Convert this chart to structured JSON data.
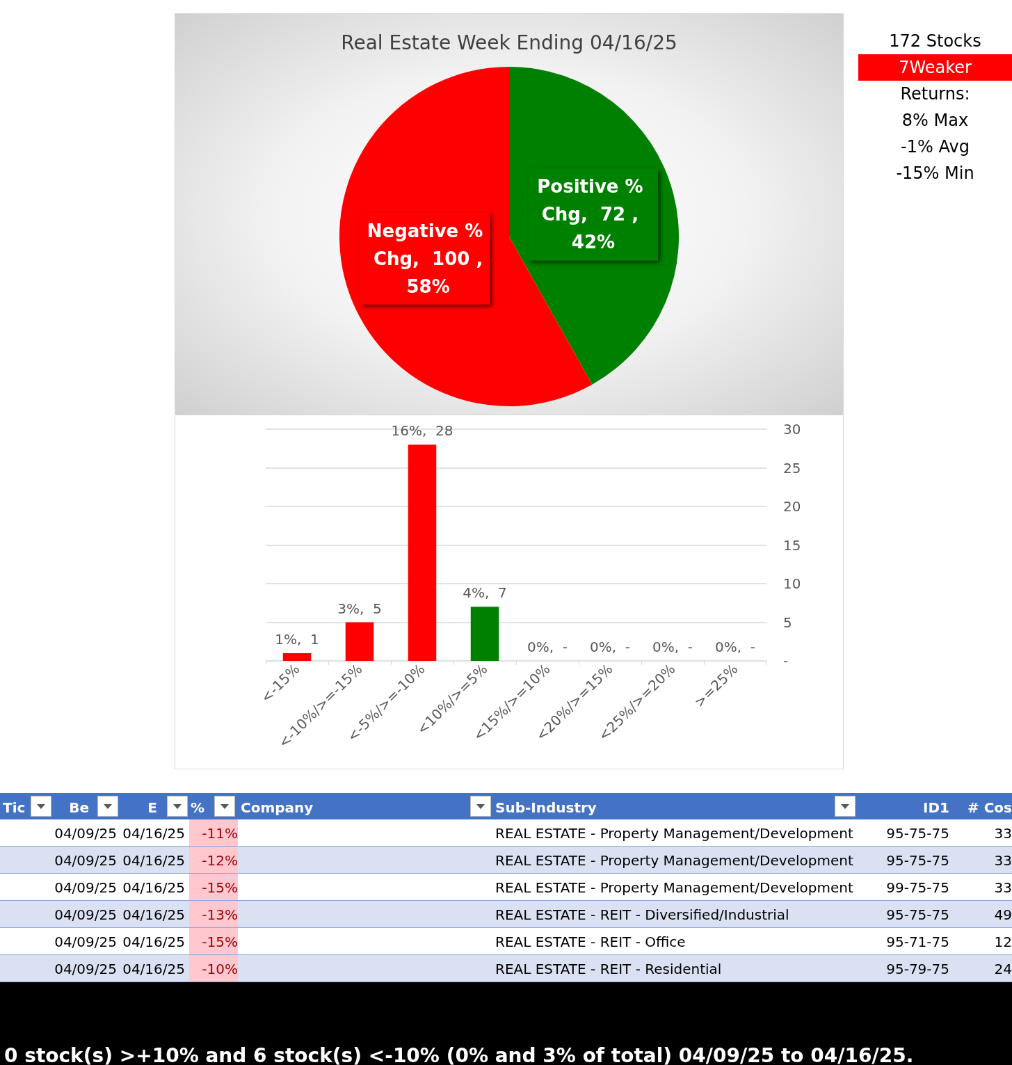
{
  "chart_data": [
    {
      "type": "pie",
      "title": "Real Estate Week Ending 04/16/25",
      "categories": [
        "Positive % Chg",
        "Negative % Chg"
      ],
      "values": [
        72,
        100
      ],
      "colors": [
        "#008000",
        "#ff0000"
      ],
      "value_labels": [
        "72 , 42%",
        "100 , 58%"
      ],
      "legend": false
    },
    {
      "type": "bar",
      "categories": [
        "<-15%",
        "<-10%/>=-15%",
        "<-5%/>=-10%",
        "<10%/>=5%",
        "<15%/>=10%",
        "<20%/>=15%",
        "<25%/>=20%",
        ">=25%"
      ],
      "values": [
        1,
        5,
        28,
        7,
        0,
        0,
        0,
        0
      ],
      "colors": [
        "#ff0000",
        "#ff0000",
        "#ff0000",
        "#008000",
        "#ff0000",
        "#ff0000",
        "#ff0000",
        "#ff0000"
      ],
      "value_labels": [
        "1%,  1",
        "3%,  5",
        "16%,  28",
        "4%,  7",
        "0%,  -",
        "0%,  -",
        "0%,  -",
        "0%,  -"
      ],
      "ylim": [
        0,
        30
      ],
      "yticks": [
        {
          "value": 0,
          "label": "-"
        },
        5,
        10,
        15,
        20,
        25,
        30
      ],
      "grid": "y",
      "legend": false
    },
    {
      "type": "other",
      "annotations": [
        "172 Stocks",
        "7Weaker",
        "Returns:",
        "8% Max",
        "-1% Avg",
        "-15% Min"
      ],
      "colors": [
        null,
        "#ff0000",
        null,
        null,
        null,
        null
      ]
    },
    {
      "type": "other",
      "annotations": [
        "Tic",
        "Be",
        "E",
        "%",
        "Company",
        "Sub-Industry",
        "ID1",
        "# Cos",
        "04/09/25",
        "04/16/25",
        "-11%",
        "REAL ESTATE - Property Management/Development",
        "95-75-75",
        "33",
        "04/09/25",
        "04/16/25",
        "-12%",
        "REAL ESTATE - Property Management/Development",
        "95-75-75",
        "33",
        "04/09/25",
        "04/16/25",
        "-15%",
        "REAL ESTATE - Property Management/Development",
        "99-75-75",
        "33",
        "04/09/25",
        "04/16/25",
        "-13%",
        "REAL ESTATE - REIT - Diversified/Industrial",
        "95-75-75",
        "49",
        "04/09/25",
        "04/16/25",
        "-15%",
        "REAL ESTATE - REIT - Office",
        "95-71-75",
        "12",
        "04/09/25",
        "04/16/25",
        "-10%",
        "REAL ESTATE - REIT - Residential",
        "95-79-75",
        "24",
        "0 stock(s) >+10% and 6 stock(s) <-10% (0% and 3% of total) 04/09/25 to 04/16/25."
      ]
    }
  ]
}
